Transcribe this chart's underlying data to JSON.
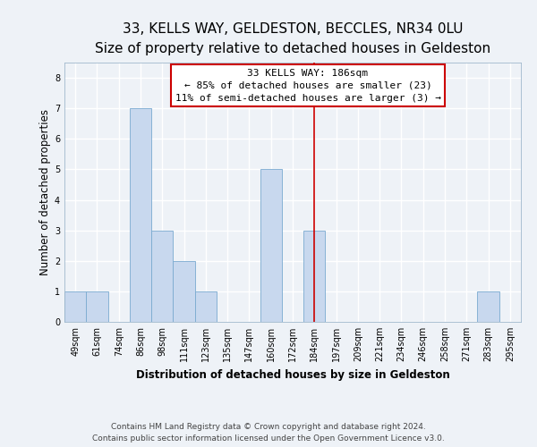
{
  "title": "33, KELLS WAY, GELDESTON, BECCLES, NR34 0LU",
  "subtitle": "Size of property relative to detached houses in Geldeston",
  "xlabel": "Distribution of detached houses by size in Geldeston",
  "ylabel": "Number of detached properties",
  "bins": [
    "49sqm",
    "61sqm",
    "74sqm",
    "86sqm",
    "98sqm",
    "111sqm",
    "123sqm",
    "135sqm",
    "147sqm",
    "160sqm",
    "172sqm",
    "184sqm",
    "197sqm",
    "209sqm",
    "221sqm",
    "234sqm",
    "246sqm",
    "258sqm",
    "271sqm",
    "283sqm",
    "295sqm"
  ],
  "values": [
    1,
    1,
    0,
    7,
    3,
    2,
    1,
    0,
    0,
    5,
    0,
    3,
    0,
    0,
    0,
    0,
    0,
    0,
    0,
    1,
    0
  ],
  "bar_color": "#c8d8ee",
  "bar_edge_color": "#7aaad0",
  "vline_x_index": 11,
  "vline_color": "#cc0000",
  "ylim": [
    0,
    8.5
  ],
  "yticks": [
    0,
    1,
    2,
    3,
    4,
    5,
    6,
    7,
    8
  ],
  "annotation_title": "33 KELLS WAY: 186sqm",
  "annotation_line1": "← 85% of detached houses are smaller (23)",
  "annotation_line2": "11% of semi-detached houses are larger (3) →",
  "footer_line1": "Contains HM Land Registry data © Crown copyright and database right 2024.",
  "footer_line2": "Contains public sector information licensed under the Open Government Licence v3.0.",
  "background_color": "#eef2f7",
  "plot_bg_color": "#eef2f7",
  "grid_color": "#ffffff",
  "title_fontsize": 11,
  "subtitle_fontsize": 9.5,
  "axis_label_fontsize": 8.5,
  "tick_fontsize": 7,
  "annotation_fontsize": 8,
  "footer_fontsize": 6.5
}
